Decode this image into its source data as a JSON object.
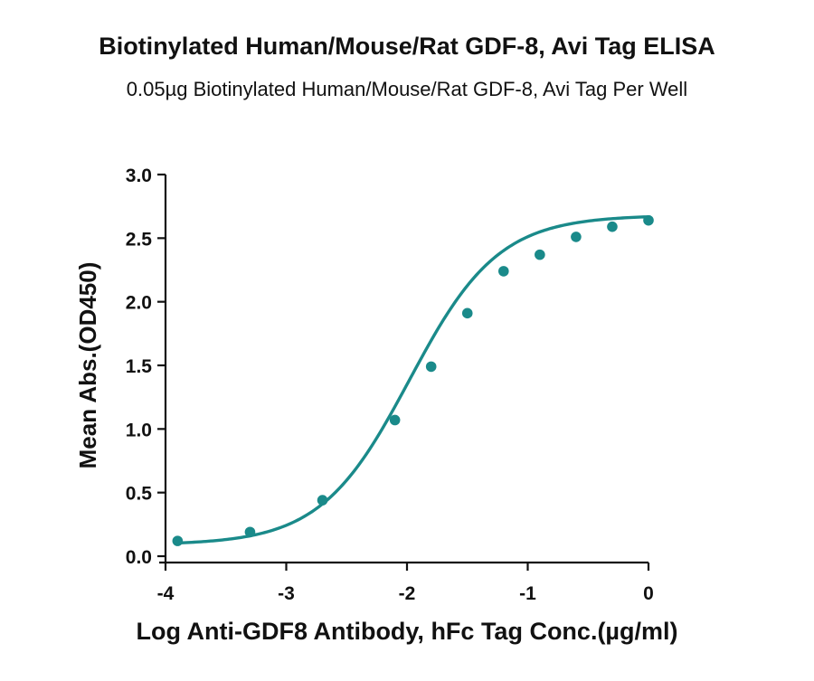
{
  "chart_data": {
    "type": "scatter",
    "title": "Biotinylated Human/Mouse/Rat GDF-8, Avi Tag ELISA",
    "subtitle": "0.05µg Biotinylated Human/Mouse/Rat GDF-8, Avi Tag Per Well",
    "xlabel": "Log Anti-GDF8 Antibody, hFc Tag Conc.(µg/ml)",
    "ylabel": "Mean Abs.(OD450)",
    "xlim": [
      -4,
      0
    ],
    "ylim": [
      0,
      3
    ],
    "x_ticks": [
      "-4",
      "-3",
      "-2",
      "-1",
      "0"
    ],
    "y_ticks": [
      "0.0",
      "0.5",
      "1.0",
      "1.5",
      "2.0",
      "2.5",
      "3.0"
    ],
    "color": "#1a8a8a",
    "grid": false,
    "fit": "4PL",
    "series": [
      {
        "x": [
          -3.9,
          -3.3,
          -2.7,
          -2.1,
          -1.8,
          -1.5,
          -1.2,
          -0.9,
          -0.6,
          -0.3,
          0.0
        ],
        "y": [
          0.12,
          0.19,
          0.44,
          1.07,
          1.49,
          1.91,
          2.24,
          2.37,
          2.51,
          2.59,
          2.64
        ]
      }
    ]
  }
}
